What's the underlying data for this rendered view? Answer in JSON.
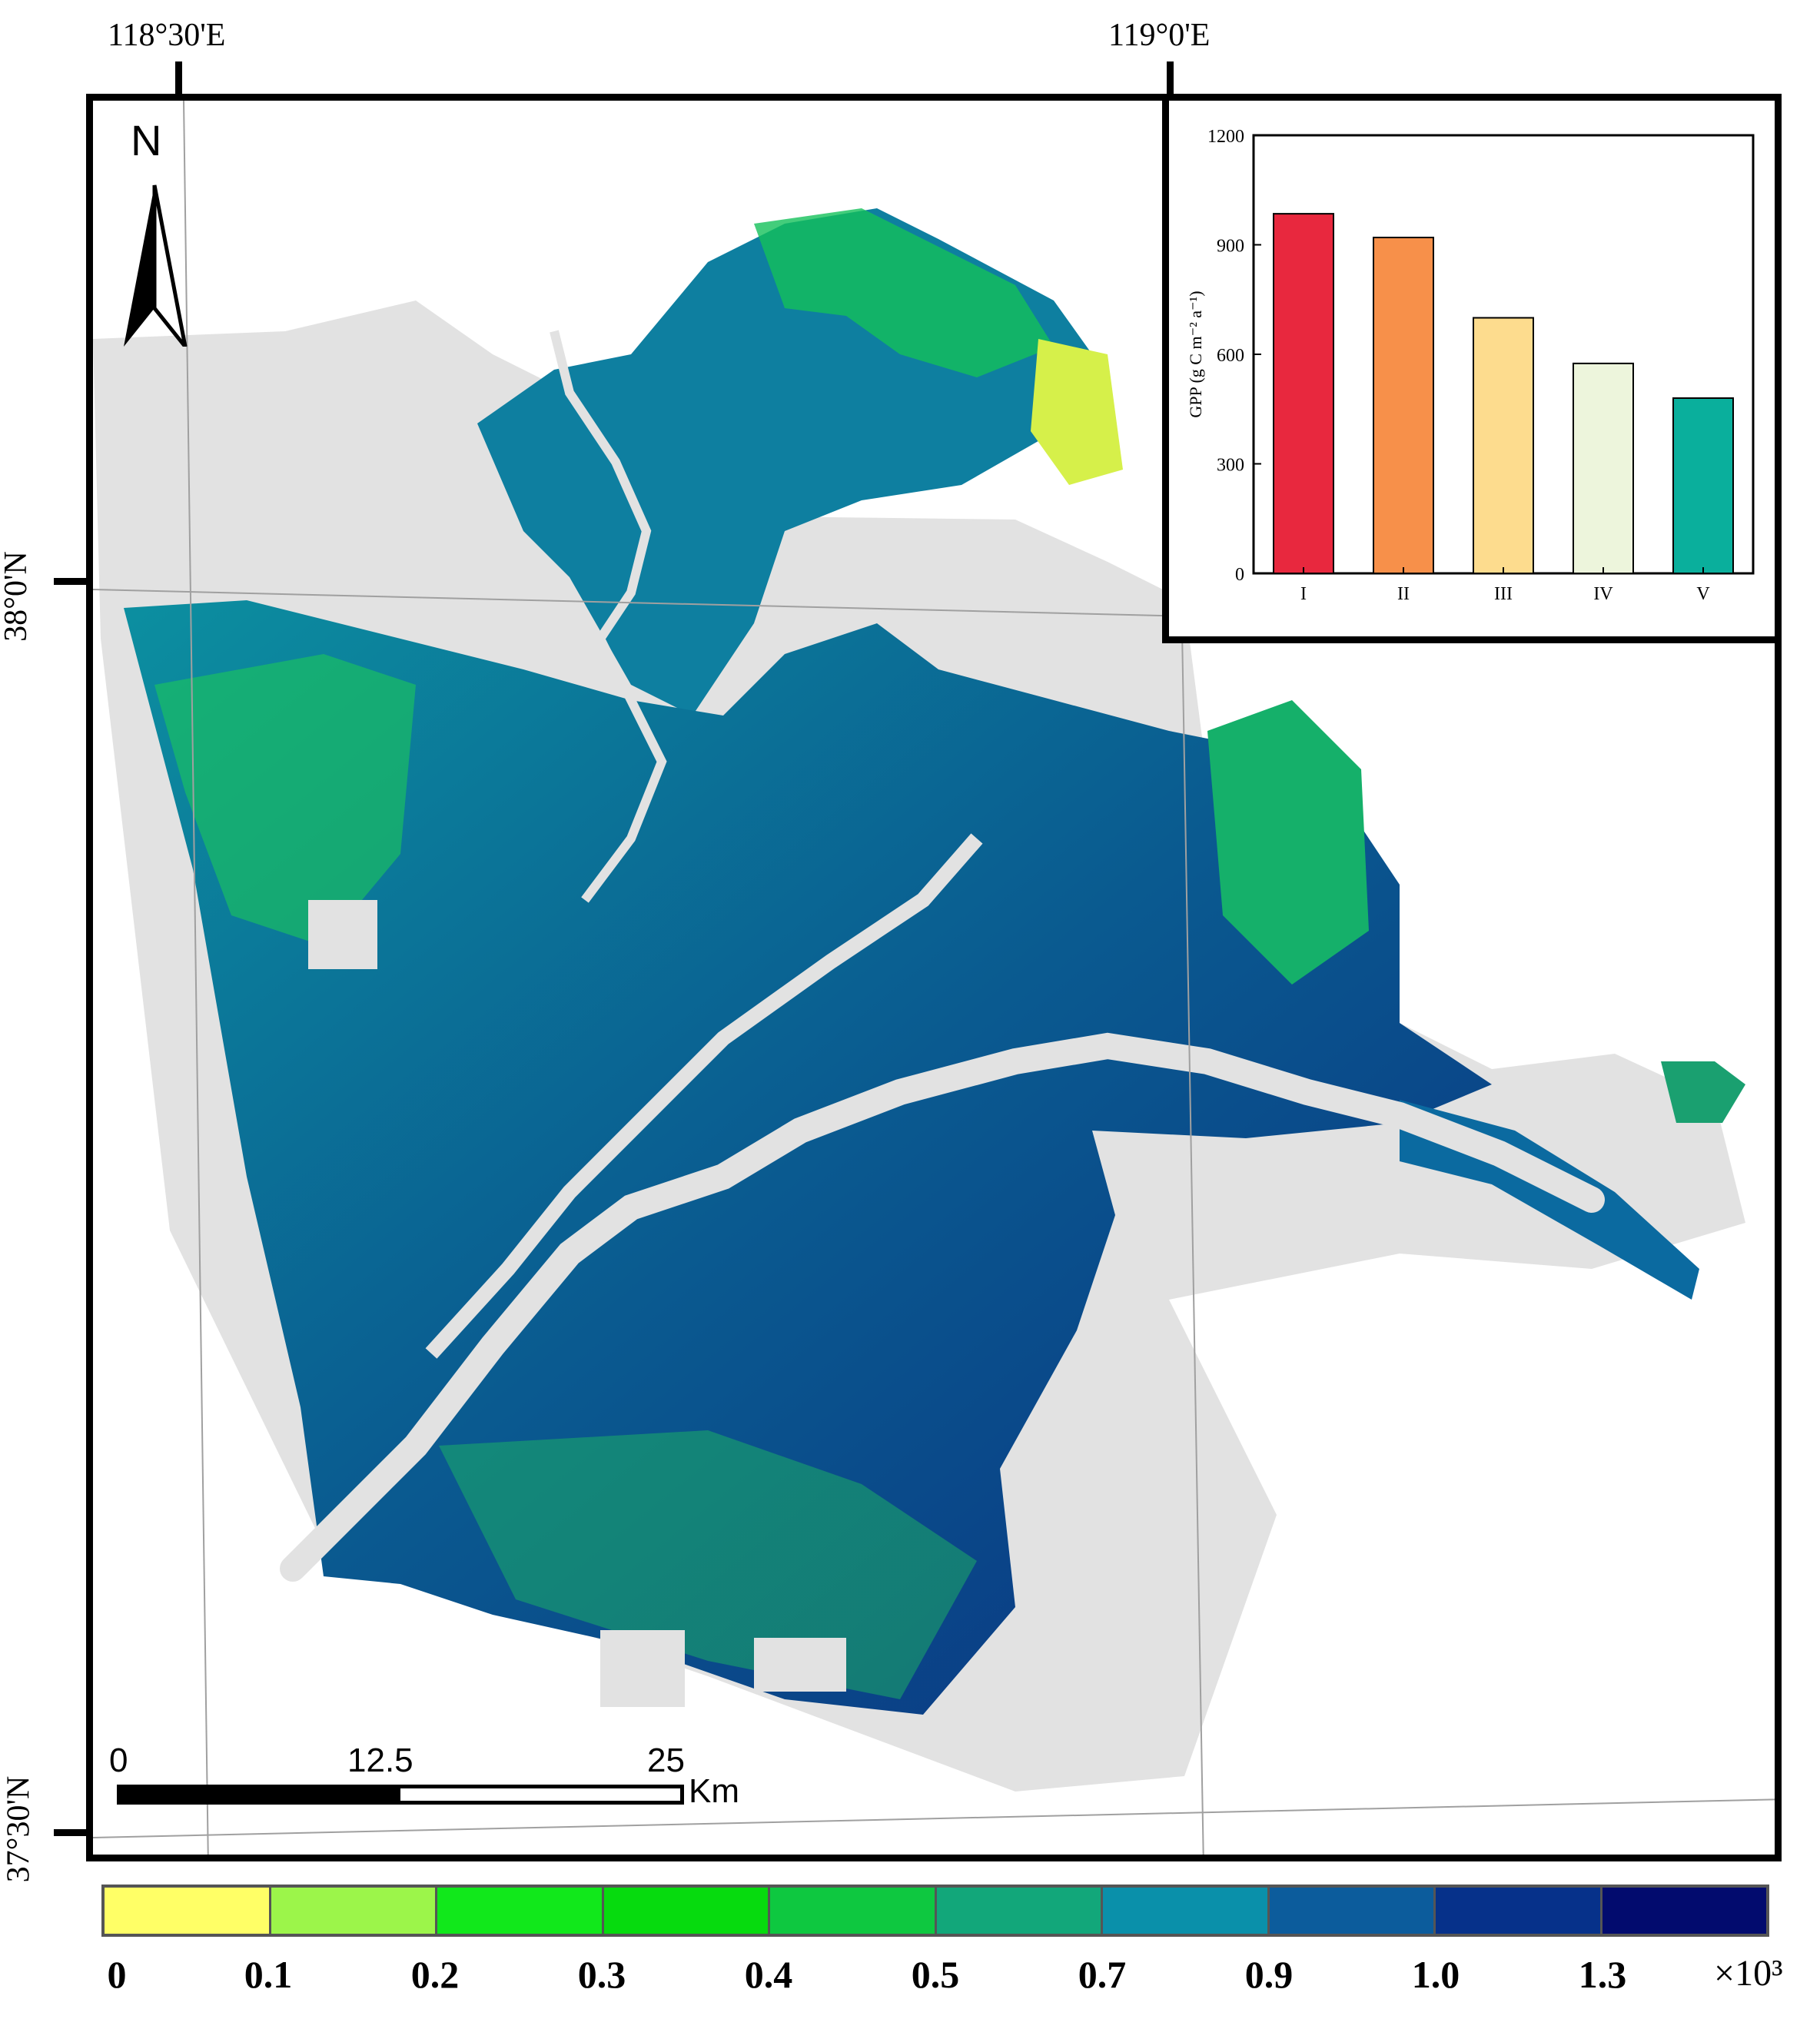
{
  "graticule": {
    "lon_labels": [
      "118°30'E",
      "119°0'E"
    ],
    "lat_labels": [
      "38°0'N",
      "37°30'N"
    ]
  },
  "north_arrow": {
    "label": "N",
    "icon": "north-arrow-icon"
  },
  "scale_bar": {
    "labels": [
      "0",
      "12.5",
      "25"
    ],
    "unit": "Km"
  },
  "legend": {
    "colors": [
      "#ffff66",
      "#9cf54a",
      "#11e81b",
      "#06db0e",
      "#0ec840",
      "#12a77a",
      "#0a90aa",
      "#0c5c9c",
      "#06318a",
      "#020b6e"
    ],
    "labels": [
      "0",
      "0.1",
      "0.2",
      "0.3",
      "0.4",
      "0.5",
      "0.7",
      "0.9",
      "1.0",
      "1.3"
    ],
    "unit": "×10³"
  },
  "map_colors": {
    "background_land": "#e2e2e2",
    "river": "#e2e2e2",
    "grid": "#a0a0a0"
  },
  "chart_data": {
    "type": "bar",
    "categories": [
      "I",
      "II",
      "III",
      "IV",
      "V"
    ],
    "values": [
      985,
      920,
      700,
      575,
      480
    ],
    "colors": [
      "#e8283e",
      "#f7904a",
      "#fddc8e",
      "#edf5dc",
      "#0aaf9c"
    ],
    "ylabel": "GPP (g C m⁻² a⁻¹)",
    "ylim": [
      0,
      1200
    ],
    "yticks": [
      0,
      300,
      600,
      900,
      1200
    ],
    "xlabel": "",
    "title": ""
  }
}
